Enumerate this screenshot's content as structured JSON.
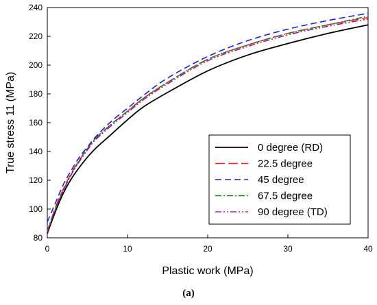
{
  "caption": "(a)",
  "chart_data": {
    "type": "line",
    "xlabel": "Plastic work (MPa)",
    "ylabel": "True stress 11 (MPa)",
    "xlim": [
      0,
      40
    ],
    "ylim": [
      80,
      240
    ],
    "xticks": [
      0,
      10,
      20,
      30,
      40
    ],
    "yticks": [
      80,
      100,
      120,
      140,
      160,
      180,
      200,
      220,
      240
    ],
    "grid": false,
    "legend_position": "bottom-right",
    "x": [
      0,
      1,
      2,
      3,
      4,
      5,
      6,
      8,
      10,
      12,
      15,
      20,
      25,
      30,
      35,
      40
    ],
    "series": [
      {
        "name": "0 degree (RD)",
        "color": "#000000",
        "dash": "solid",
        "values": [
          83,
          98,
          111,
          121,
          129,
          136,
          142,
          152,
          162,
          171,
          181,
          196,
          207,
          215,
          222,
          228
        ]
      },
      {
        "name": "22.5 degree",
        "color": "#ff2020",
        "dash": "longdash",
        "values": [
          84,
          101,
          114,
          125,
          134,
          142,
          149,
          159,
          168,
          177,
          188,
          204,
          214,
          222,
          228,
          233
        ]
      },
      {
        "name": "45 degree",
        "color": "#1f1fd6",
        "dash": "dash",
        "values": [
          91,
          104,
          117,
          127,
          136,
          143,
          150,
          161,
          170,
          179,
          191,
          206,
          217,
          225,
          231,
          236
        ]
      },
      {
        "name": "67.5 degree",
        "color": "#208020",
        "dash": "dashdot",
        "values": [
          85,
          100,
          113,
          124,
          134,
          142,
          149,
          159,
          168,
          177,
          188,
          204,
          214,
          222,
          228,
          234
        ]
      },
      {
        "name": "90 degree (TD)",
        "color": "#9b1ba0",
        "dash": "dashdotdot",
        "values": [
          84,
          100,
          113,
          124,
          133,
          141,
          148,
          158,
          167,
          176,
          187,
          203,
          213,
          221,
          227,
          232
        ]
      }
    ]
  }
}
